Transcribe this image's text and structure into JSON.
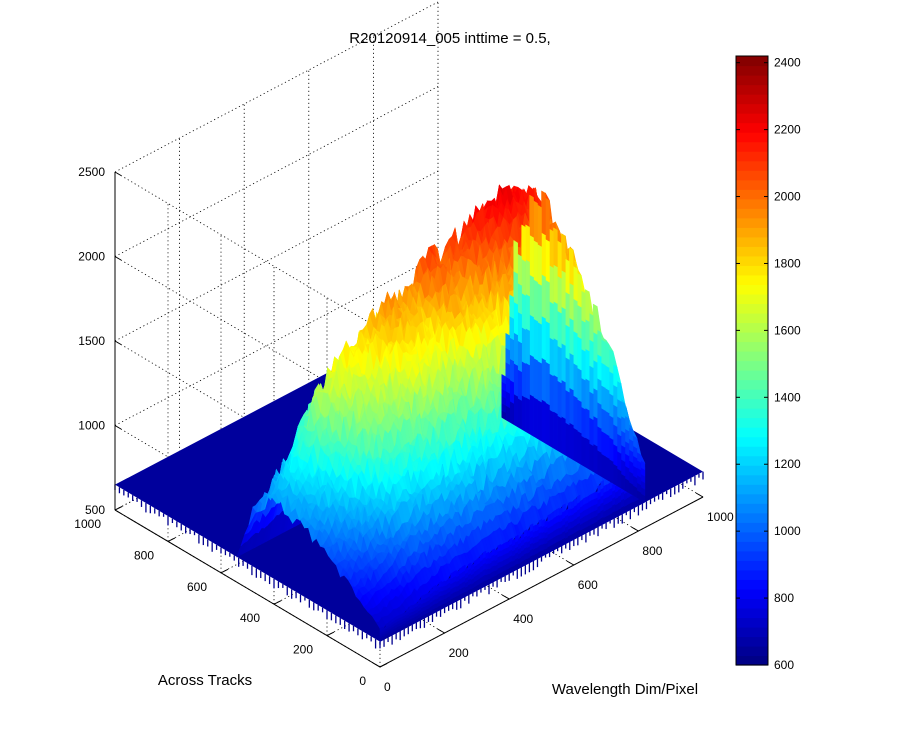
{
  "chart_data": {
    "type": "surface",
    "title": "R20120914_005 inttime = 0.5,",
    "xlabel": "Wavelength Dim/Pixel",
    "ylabel": "Across Tracks",
    "zlabel": "",
    "x_ticks": [
      0,
      200,
      400,
      600,
      800,
      1000
    ],
    "y_ticks": [
      0,
      200,
      400,
      600,
      800,
      1000
    ],
    "z_ticks": [
      500,
      1000,
      1500,
      2000,
      2500
    ],
    "xlim": [
      0,
      1000
    ],
    "ylim": [
      0,
      1000
    ],
    "zlim": [
      500,
      2500
    ],
    "grid": true,
    "colormap": "jet",
    "colorbar": {
      "ticks": [
        600,
        800,
        1000,
        1200,
        1400,
        1600,
        1800,
        2000,
        2200,
        2400
      ],
      "range": [
        600,
        2420
      ]
    },
    "surface": {
      "baseline": 650,
      "signal_x_range": [
        0,
        820
      ],
      "signal_y_range": [
        0,
        540
      ],
      "peak_value": 2250,
      "spectral_profile": [
        {
          "x": 0,
          "z": 1130
        },
        {
          "x": 80,
          "z": 1330
        },
        {
          "x": 170,
          "z": 1690
        },
        {
          "x": 260,
          "z": 1810
        },
        {
          "x": 340,
          "z": 1950
        },
        {
          "x": 420,
          "z": 1920
        },
        {
          "x": 470,
          "z": 2080
        },
        {
          "x": 530,
          "z": 2060
        },
        {
          "x": 600,
          "z": 2150
        },
        {
          "x": 660,
          "z": 2210
        },
        {
          "x": 720,
          "z": 2250
        },
        {
          "x": 780,
          "z": 2180
        },
        {
          "x": 820,
          "z": 2100
        }
      ],
      "across_track_falloff": [
        {
          "y": 0,
          "f": 0.15
        },
        {
          "y": 100,
          "f": 0.45
        },
        {
          "y": 250,
          "f": 0.8
        },
        {
          "y": 400,
          "f": 1.0
        },
        {
          "y": 480,
          "f": 0.7
        },
        {
          "y": 540,
          "f": 0.0
        }
      ]
    }
  }
}
